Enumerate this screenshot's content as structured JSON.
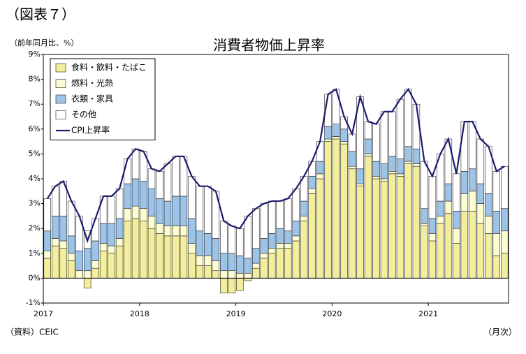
{
  "header": "（図表７）",
  "chart_data": {
    "type": "stacked_bar_line",
    "title": "消費者物価上昇率",
    "y_axis_label": "（前年同月比、%）",
    "source": "（資料）CEIC",
    "x_axis_label": "（月次）",
    "categories": [
      "2017",
      null,
      null,
      null,
      null,
      null,
      null,
      null,
      null,
      null,
      null,
      null,
      "2018",
      null,
      null,
      null,
      null,
      null,
      null,
      null,
      null,
      null,
      null,
      null,
      "2019",
      null,
      null,
      null,
      null,
      null,
      null,
      null,
      null,
      null,
      null,
      null,
      "2020",
      null,
      null,
      null,
      null,
      null,
      null,
      null,
      null,
      null,
      null,
      null,
      "2021",
      null,
      null,
      null,
      null,
      null,
      null,
      null,
      null,
      null
    ],
    "series": [
      {
        "name": "食料・飲料・たばこ",
        "color": "#f3ee9c",
        "values": [
          0.8,
          1.3,
          1.2,
          0.7,
          0.0,
          -0.4,
          0.4,
          1.1,
          1.0,
          1.3,
          2.3,
          2.4,
          2.3,
          2.0,
          1.8,
          1.7,
          1.7,
          1.7,
          1.0,
          0.5,
          0.5,
          0.3,
          -0.6,
          -0.6,
          -0.5,
          -0.1,
          0.4,
          0.8,
          1.0,
          1.2,
          1.2,
          1.5,
          2.3,
          3.4,
          4.0,
          5.5,
          5.6,
          5.4,
          4.4,
          3.7,
          4.9,
          4.0,
          3.9,
          4.2,
          4.1,
          4.6,
          4.5,
          2.1,
          1.5,
          2.2,
          2.6,
          1.4,
          2.7,
          2.7,
          2.2,
          1.8,
          0.9,
          1.0
        ]
      },
      {
        "name": "燃料・光熱",
        "color": "#fdfdd2",
        "values": [
          0.3,
          0.3,
          0.3,
          0.3,
          0.3,
          0.3,
          0.3,
          0.3,
          0.3,
          0.3,
          0.5,
          0.5,
          0.5,
          0.5,
          0.4,
          0.4,
          0.4,
          0.4,
          0.4,
          0.4,
          0.4,
          0.4,
          0.3,
          0.3,
          0.2,
          0.2,
          0.2,
          0.2,
          0.2,
          0.2,
          0.2,
          0.2,
          0.2,
          0.2,
          0.2,
          0.1,
          0.1,
          0.1,
          0.1,
          0.1,
          0.1,
          0.1,
          0.1,
          0.1,
          0.1,
          0.1,
          0.1,
          0.1,
          0.3,
          0.3,
          0.5,
          0.6,
          0.7,
          0.8,
          0.8,
          0.7,
          0.9,
          0.9
        ]
      },
      {
        "name": "衣類・家具",
        "color": "#9cc3e8",
        "values": [
          0.8,
          0.9,
          1.0,
          0.7,
          0.8,
          0.9,
          0.8,
          0.8,
          0.9,
          0.8,
          1.0,
          1.1,
          1.1,
          1.1,
          1.0,
          1.0,
          1.2,
          1.2,
          1.0,
          1.0,
          0.9,
          0.9,
          0.7,
          0.7,
          0.7,
          0.6,
          0.6,
          0.6,
          0.6,
          0.6,
          0.5,
          0.6,
          0.6,
          0.5,
          0.5,
          0.5,
          0.5,
          0.5,
          0.6,
          0.6,
          0.6,
          0.6,
          0.6,
          0.6,
          0.6,
          0.6,
          0.6,
          0.6,
          0.6,
          0.6,
          0.7,
          0.7,
          0.9,
          0.9,
          0.8,
          0.9,
          0.9,
          0.9
        ]
      },
      {
        "name": "その他",
        "color": "#ffffff",
        "values": [
          1.3,
          1.2,
          1.4,
          1.4,
          1.4,
          0.7,
          0.9,
          1.1,
          1.1,
          1.2,
          1.0,
          1.2,
          1.2,
          0.8,
          1.1,
          1.5,
          1.6,
          1.6,
          1.7,
          1.8,
          1.9,
          1.9,
          1.3,
          1.1,
          1.1,
          1.7,
          1.6,
          1.4,
          1.3,
          1.1,
          1.3,
          1.3,
          1.0,
          0.6,
          0.8,
          1.3,
          1.4,
          0.5,
          0.7,
          2.9,
          0.7,
          1.5,
          2.1,
          1.8,
          2.4,
          2.3,
          1.8,
          1.9,
          1.7,
          1.9,
          1.8,
          1.5,
          2.0,
          1.9,
          1.8,
          1.9,
          1.6,
          1.7
        ]
      },
      {
        "name": "CPI上昇率",
        "color": "#1c1c6e",
        "type": "line",
        "values": [
          3.2,
          3.7,
          3.9,
          3.1,
          2.5,
          1.5,
          2.4,
          3.3,
          3.3,
          3.6,
          4.8,
          5.2,
          5.1,
          4.4,
          4.3,
          4.6,
          4.9,
          4.9,
          4.1,
          3.7,
          3.7,
          3.5,
          2.3,
          2.1,
          2.0,
          2.5,
          2.8,
          3.0,
          3.1,
          3.1,
          3.2,
          3.6,
          4.1,
          4.7,
          5.5,
          7.4,
          7.6,
          6.5,
          5.8,
          7.3,
          6.3,
          6.2,
          6.7,
          6.7,
          7.2,
          7.6,
          7.0,
          4.7,
          4.1,
          5.0,
          5.6,
          4.2,
          6.3,
          6.3,
          5.6,
          5.3,
          4.3,
          4.5
        ]
      }
    ],
    "ylim": [
      -1,
      9
    ],
    "yticks": [
      {
        "value": -1,
        "label": "-1%"
      },
      {
        "value": 0,
        "label": "0%"
      },
      {
        "value": 1,
        "label": "1%"
      },
      {
        "value": 2,
        "label": "2%"
      },
      {
        "value": 3,
        "label": "3%"
      },
      {
        "value": 4,
        "label": "4%"
      },
      {
        "value": 5,
        "label": "5%"
      },
      {
        "value": 6,
        "label": "6%"
      },
      {
        "value": 7,
        "label": "7%"
      },
      {
        "value": 8,
        "label": "8%"
      },
      {
        "value": 9,
        "label": "9%"
      }
    ],
    "legend": "upper left"
  }
}
